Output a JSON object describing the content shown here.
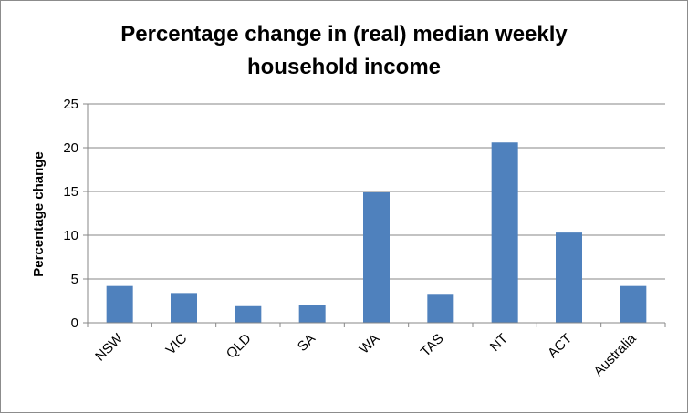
{
  "chart_data": {
    "type": "bar",
    "title_lines": [
      "Percentage change in (real) median weekly",
      "household income"
    ],
    "xlabel": "",
    "ylabel": "Percentage change",
    "categories": [
      "NSW",
      "VIC",
      "QLD",
      "SA",
      "WA",
      "TAS",
      "NT",
      "ACT",
      "Australia"
    ],
    "values": [
      4.2,
      3.4,
      1.9,
      2.0,
      14.9,
      3.2,
      20.6,
      10.3,
      4.2
    ],
    "ylim": [
      0,
      25
    ],
    "yticks": [
      "0",
      "5",
      "10",
      "15",
      "20",
      "25"
    ],
    "grid": true,
    "legend": "none",
    "bar_color": "#4f81bd"
  }
}
